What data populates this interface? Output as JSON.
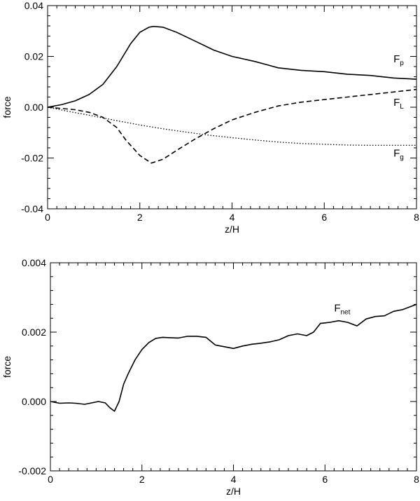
{
  "chart_data": [
    {
      "type": "line",
      "ylabel": "force",
      "xlabel": "z/H",
      "xlim": [
        0,
        8
      ],
      "ylim": [
        -0.04,
        0.04
      ],
      "x_ticks": [
        0,
        2,
        4,
        6,
        8
      ],
      "x_tick_labels": [
        "0",
        "2",
        "4",
        "6",
        "8"
      ],
      "y_ticks": [
        -0.04,
        -0.02,
        0.0,
        0.02,
        0.04
      ],
      "y_tick_labels": [
        "-0.04",
        "-0.02",
        "0.00",
        "0.02",
        "0.04"
      ],
      "grid": false,
      "series": [
        {
          "name": "F_p",
          "label_main": "F",
          "label_sub": "p",
          "label_at": [
            7.5,
            0.0177
          ],
          "style": "solid",
          "x": [
            0,
            0.3,
            0.6,
            0.9,
            1.2,
            1.5,
            1.8,
            2.0,
            2.2,
            2.3,
            2.5,
            2.8,
            3.2,
            3.6,
            4.0,
            4.5,
            5.0,
            5.5,
            6.0,
            6.5,
            7.0,
            7.5,
            8.0
          ],
          "y": [
            0,
            0.001,
            0.0025,
            0.005,
            0.009,
            0.016,
            0.025,
            0.0295,
            0.0315,
            0.0318,
            0.0315,
            0.0295,
            0.026,
            0.0225,
            0.02,
            0.018,
            0.0155,
            0.0145,
            0.014,
            0.013,
            0.0125,
            0.0115,
            0.011
          ]
        },
        {
          "name": "F_L",
          "label_main": "F",
          "label_sub": "L",
          "label_at": [
            7.5,
            0.0005
          ],
          "style": "dashed",
          "x": [
            0,
            0.3,
            0.6,
            0.9,
            1.2,
            1.5,
            1.7,
            2.0,
            2.25,
            2.5,
            2.8,
            3.2,
            3.6,
            4.0,
            4.5,
            5.0,
            5.5,
            6.0,
            6.5,
            7.0,
            7.5,
            8.0
          ],
          "y": [
            0,
            -0.0005,
            -0.001,
            -0.002,
            -0.004,
            -0.008,
            -0.013,
            -0.019,
            -0.022,
            -0.0205,
            -0.017,
            -0.0125,
            -0.0085,
            -0.005,
            -0.002,
            0.0005,
            0.002,
            0.003,
            0.004,
            0.005,
            0.006,
            0.007
          ]
        },
        {
          "name": "F_g",
          "label_main": "F",
          "label_sub": "g",
          "label_at": [
            7.5,
            -0.0195
          ],
          "style": "dotted",
          "x": [
            0,
            0.5,
            1.0,
            1.5,
            2.0,
            2.5,
            3.0,
            3.5,
            4.0,
            4.5,
            5.0,
            5.5,
            6.0,
            6.5,
            7.0,
            7.5,
            8.0
          ],
          "y": [
            0,
            -0.0018,
            -0.0035,
            -0.0053,
            -0.007,
            -0.0085,
            -0.0098,
            -0.011,
            -0.012,
            -0.0129,
            -0.0137,
            -0.0143,
            -0.0146,
            -0.0149,
            -0.015,
            -0.015,
            -0.015
          ]
        }
      ]
    },
    {
      "type": "line",
      "ylabel": "force",
      "xlabel": "z/H",
      "xlim": [
        0,
        8
      ],
      "ylim": [
        -0.002,
        0.004
      ],
      "x_ticks": [
        0,
        2,
        4,
        6,
        8
      ],
      "x_tick_labels": [
        "0",
        "2",
        "4",
        "6",
        "8"
      ],
      "y_ticks": [
        -0.002,
        0.0,
        0.002,
        0.004
      ],
      "y_tick_labels": [
        "-0.002",
        "0.000",
        "0.002",
        "0.004"
      ],
      "grid": false,
      "series": [
        {
          "name": "F_net",
          "label_main": "F",
          "label_sub": "net",
          "label_at": [
            6.2,
            0.0026
          ],
          "style": "solid",
          "x": [
            0,
            0.2,
            0.4,
            0.55,
            0.75,
            0.9,
            1.05,
            1.2,
            1.3,
            1.4,
            1.5,
            1.6,
            1.7,
            1.85,
            2.0,
            2.15,
            2.3,
            2.45,
            2.6,
            2.8,
            3.0,
            3.2,
            3.4,
            3.6,
            3.8,
            4.0,
            4.2,
            4.4,
            4.6,
            4.8,
            5.0,
            5.2,
            5.4,
            5.6,
            5.75,
            5.9,
            6.1,
            6.3,
            6.5,
            6.7,
            6.9,
            7.1,
            7.3,
            7.5,
            7.7,
            8.0
          ],
          "y": [
            0.0,
            -5e-05,
            -4e-05,
            -5e-05,
            -8e-05,
            -4e-05,
            0.0,
            -4e-05,
            -0.00018,
            -0.00028,
            0.0,
            0.0005,
            0.0008,
            0.0012,
            0.0015,
            0.0017,
            0.00182,
            0.00185,
            0.00184,
            0.00183,
            0.00188,
            0.00188,
            0.00185,
            0.00163,
            0.00158,
            0.00153,
            0.0016,
            0.00165,
            0.00168,
            0.00172,
            0.00178,
            0.0019,
            0.00195,
            0.0019,
            0.002,
            0.00225,
            0.00228,
            0.00233,
            0.00228,
            0.00218,
            0.00238,
            0.00245,
            0.00247,
            0.0026,
            0.00265,
            0.0028
          ]
        }
      ]
    }
  ]
}
